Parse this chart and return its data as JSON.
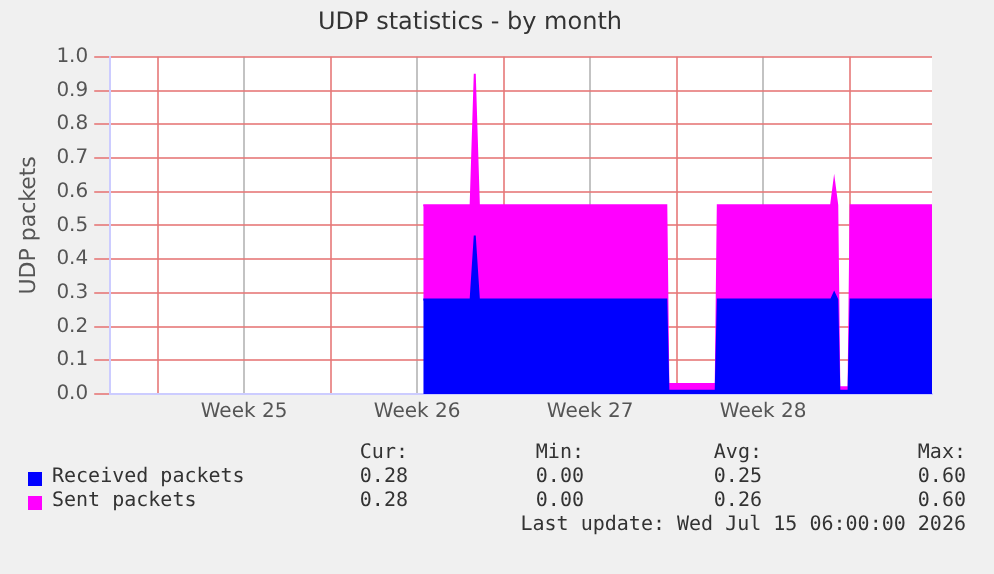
{
  "chart_data": {
    "type": "area",
    "title": "UDP statistics - by month",
    "ylabel": "UDP packets",
    "stacked": true,
    "grid": true,
    "legend": "bottom left",
    "marker": "none",
    "x": [
      "2026-06-25T18:00",
      "2026-06-27T16:00",
      "2026-06-27T20:00",
      "2026-06-28T00:00",
      "2026-07-05T14:00",
      "2026-07-05T16:00",
      "2026-07-07T14:00",
      "2026-07-07T16:00",
      "2026-07-12T06:00",
      "2026-07-12T09:00",
      "2026-07-12T12:00",
      "2026-07-12T14:00",
      "2026-07-12T23:00",
      "2026-07-13T01:00",
      "2026-07-16T08:00"
    ],
    "series": [
      {
        "name": "Received packets",
        "color": "#0000ff",
        "values": [
          0.28,
          0.28,
          0.47,
          0.28,
          0.28,
          0.01,
          0.01,
          0.28,
          0.28,
          0.3,
          0.28,
          0.01,
          0.01,
          0.28,
          0.28
        ]
      },
      {
        "name": "Sent packets",
        "color": "#ff00ff",
        "values": [
          0.28,
          0.28,
          0.48,
          0.28,
          0.28,
          0.02,
          0.02,
          0.28,
          0.28,
          0.33,
          0.28,
          0.01,
          0.01,
          0.28,
          0.28
        ]
      }
    ],
    "xlim": [
      "2026-06-13T02:00",
      "2026-07-16T08:00"
    ],
    "xticks": [
      {
        "value": "2026-06-15",
        "label": null
      },
      {
        "value": "2026-06-18T12:00",
        "label": "Week 25"
      },
      {
        "value": "2026-06-22",
        "label": null
      },
      {
        "value": "2026-06-25T12:00",
        "label": "Week 26"
      },
      {
        "value": "2026-06-29",
        "label": null
      },
      {
        "value": "2026-07-02T12:00",
        "label": "Week 27"
      },
      {
        "value": "2026-07-06",
        "label": null
      },
      {
        "value": "2026-07-09T12:00",
        "label": "Week 28"
      },
      {
        "value": "2026-07-13",
        "label": null
      }
    ],
    "ylim": [
      0,
      1
    ],
    "yticks": [
      {
        "value": 0,
        "label": "0.0"
      },
      0.1,
      0.2,
      0.3,
      0.4,
      0.5,
      0.6,
      0.7,
      0.8,
      0.9,
      {
        "value": 1,
        "label": "1.0"
      }
    ],
    "annotations": [
      "Cur:",
      "Min:",
      "Avg:",
      "Max:",
      "0.28",
      "0.00",
      "0.25",
      "0.60",
      "0.28",
      "0.00",
      "0.26",
      "0.60",
      "Last update: Wed Jul 15 06:00:00 2026"
    ]
  }
}
